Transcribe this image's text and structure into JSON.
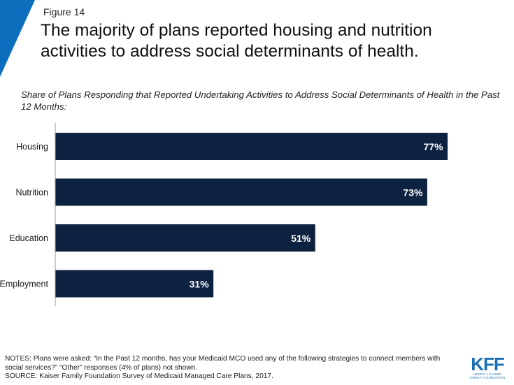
{
  "figure_label": "Figure 14",
  "title": "The majority of plans reported housing and nutrition activities to address social determinants of health.",
  "subtitle": "Share of Plans Responding that Reported Undertaking Activities to Address Social Determinants of Health in the Past 12 Months:",
  "notes": {
    "line1": "NOTES: Plans were asked: “In the Past 12 months, has your Medicaid MCO used any of the following strategies to connect members with social services?” “Other” responses (4% of plans) not shown.",
    "source": "SOURCE: Kaiser Family Foundation Survey of Medicaid Managed Care Plans, 2017."
  },
  "logo": {
    "mark": "KFF",
    "line1": "HENRY J KAISER",
    "line2": "FAMILY FOUNDATION"
  },
  "colors": {
    "bar": "#0d2240",
    "accent": "#0b6fbd",
    "logo": "#1a6fb5"
  },
  "chart_data": {
    "type": "bar",
    "orientation": "horizontal",
    "categories": [
      "Housing",
      "Nutrition",
      "Education",
      "Employment"
    ],
    "values": [
      77,
      73,
      51,
      31
    ],
    "value_labels": [
      "77%",
      "73%",
      "51%",
      "31%"
    ],
    "xlim": [
      0,
      100
    ],
    "grid": false,
    "legend": "none"
  }
}
